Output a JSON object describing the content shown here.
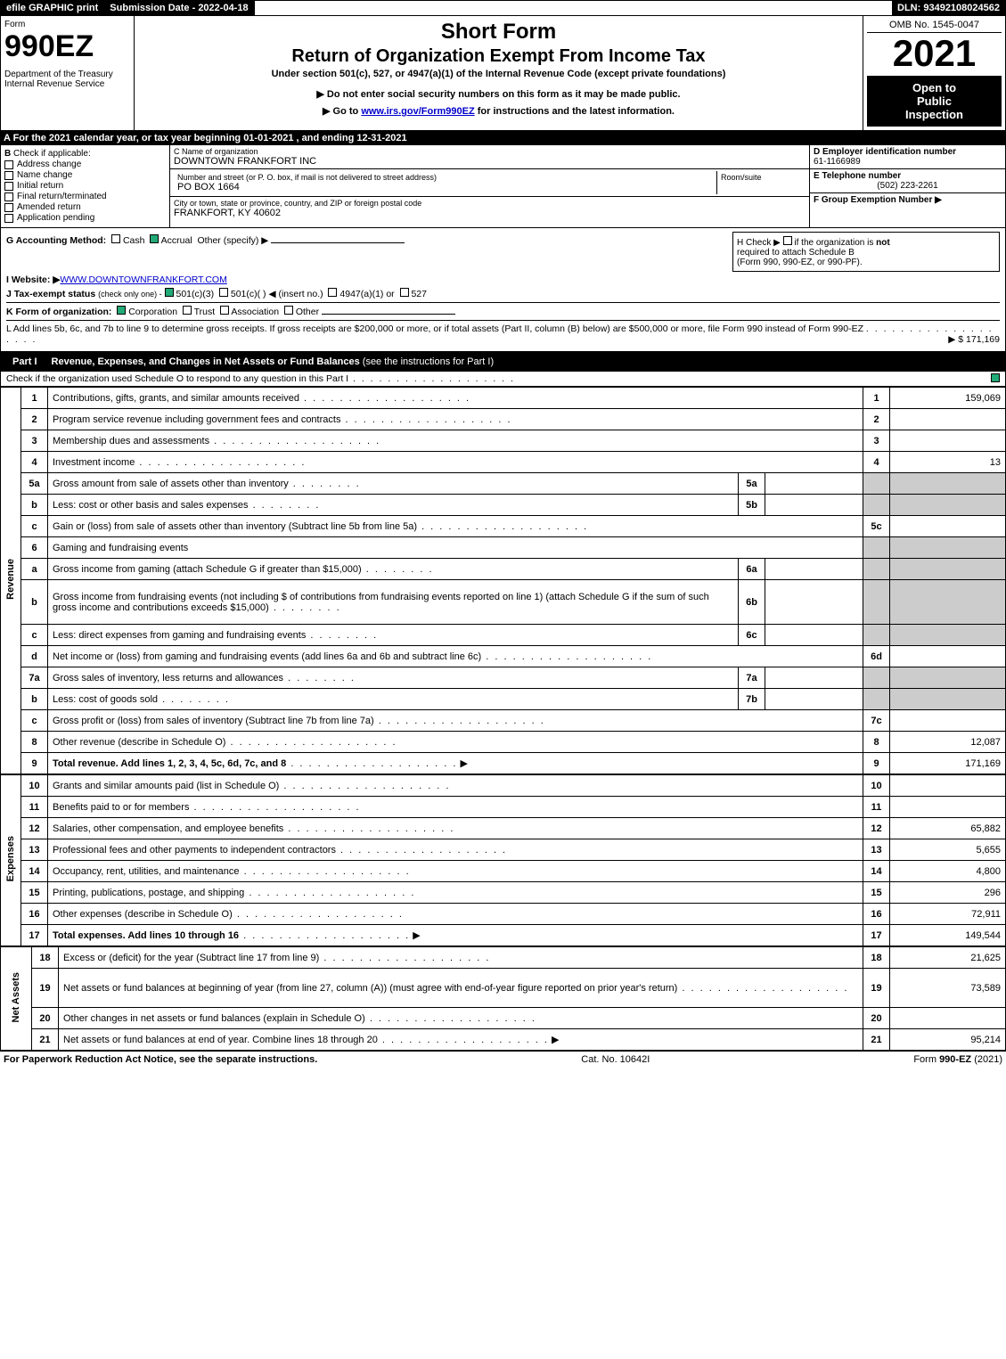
{
  "topbar": {
    "efile": "efile GRAPHIC print",
    "submission": "Submission Date - 2022-04-18",
    "dln": "DLN: 93492108024562"
  },
  "header": {
    "form_word": "Form",
    "form_no": "990EZ",
    "dept1": "Department of the Treasury",
    "dept2": "Internal Revenue Service",
    "short_form": "Short Form",
    "title": "Return of Organization Exempt From Income Tax",
    "subtitle": "Under section 501(c), 527, or 4947(a)(1) of the Internal Revenue Code (except private foundations)",
    "note1": "▶ Do not enter social security numbers on this form as it may be made public.",
    "note2_pre": "▶ Go to ",
    "note2_link": "www.irs.gov/Form990EZ",
    "note2_post": " for instructions and the latest information.",
    "omb": "OMB No. 1545-0047",
    "year": "2021",
    "open1": "Open to",
    "open2": "Public",
    "open3": "Inspection"
  },
  "secA": "A  For the 2021 calendar year, or tax year beginning 01-01-2021 , and ending 12-31-2021",
  "B": {
    "title": "B",
    "check": "Check if applicable:",
    "opts": [
      "Address change",
      "Name change",
      "Initial return",
      "Final return/terminated",
      "Amended return",
      "Application pending"
    ]
  },
  "C": {
    "name_label": "C Name of organization",
    "name": "DOWNTOWN FRANKFORT INC",
    "addr_label": "Number and street (or P. O. box, if mail is not delivered to street address)",
    "room_label": "Room/suite",
    "addr": "PO BOX 1664",
    "city_label": "City or town, state or province, country, and ZIP or foreign postal code",
    "city": "FRANKFORT, KY  40602"
  },
  "D": {
    "label": "D Employer identification number",
    "ein": "61-1166989",
    "phone_label": "E Telephone number",
    "phone": "(502) 223-2261",
    "group_label": "F Group Exemption Number  ▶"
  },
  "G": {
    "label": "G Accounting Method:",
    "cash": "Cash",
    "accrual": "Accrual",
    "other": "Other (specify) ▶"
  },
  "H": {
    "text1": "H  Check ▶",
    "text2": "if the organization is ",
    "not": "not",
    "text3": "required to attach Schedule B",
    "text4": "(Form 990, 990-EZ, or 990-PF)."
  },
  "I": {
    "label": "I Website: ▶",
    "value": "WWW.DOWNTOWNFRANKFORT.COM"
  },
  "J": {
    "label": "J Tax-exempt status",
    "note": "(check only one) -",
    "opt1": "501(c)(3)",
    "opt2": "501(c)(  ) ◀ (insert no.)",
    "opt3": "4947(a)(1) or",
    "opt4": "527"
  },
  "K": {
    "label": "K Form of organization:",
    "opts": [
      "Corporation",
      "Trust",
      "Association",
      "Other"
    ]
  },
  "L": {
    "text": "L Add lines 5b, 6c, and 7b to line 9 to determine gross receipts. If gross receipts are $200,000 or more, or if total assets (Part II, column (B) below) are $500,000 or more, file Form 990 instead of Form 990-EZ",
    "amount": "▶ $ 171,169"
  },
  "part1": {
    "label": "Part I",
    "title": "Revenue, Expenses, and Changes in Net Assets or Fund Balances",
    "note": "(see the instructions for Part I)",
    "check_line": "Check if the organization used Schedule O to respond to any question in this Part I"
  },
  "vlabels": {
    "revenue": "Revenue",
    "expenses": "Expenses",
    "netassets": "Net Assets"
  },
  "rows_revenue": [
    {
      "n": "1",
      "d": "Contributions, gifts, grants, and similar amounts received",
      "box": "1",
      "amt": "159,069"
    },
    {
      "n": "2",
      "d": "Program service revenue including government fees and contracts",
      "box": "2",
      "amt": ""
    },
    {
      "n": "3",
      "d": "Membership dues and assessments",
      "box": "3",
      "amt": ""
    },
    {
      "n": "4",
      "d": "Investment income",
      "box": "4",
      "amt": "13"
    },
    {
      "n": "5a",
      "d": "Gross amount from sale of assets other than inventory",
      "mini": "5a",
      "shade": true
    },
    {
      "n": "b",
      "d": "Less: cost or other basis and sales expenses",
      "mini": "5b",
      "shade": true
    },
    {
      "n": "c",
      "d": "Gain or (loss) from sale of assets other than inventory (Subtract line 5b from line 5a)",
      "box": "5c",
      "amt": ""
    },
    {
      "n": "6",
      "d": "Gaming and fundraising events",
      "header": true
    },
    {
      "n": "a",
      "d": "Gross income from gaming (attach Schedule G if greater than $15,000)",
      "mini": "6a",
      "shade": true
    },
    {
      "n": "b",
      "d": "Gross income from fundraising events (not including $                    of contributions from fundraising events reported on line 1) (attach Schedule G if the sum of such gross income and contributions exceeds $15,000)",
      "mini": "6b",
      "shade": true,
      "tall": true
    },
    {
      "n": "c",
      "d": "Less: direct expenses from gaming and fundraising events",
      "mini": "6c",
      "shade": true
    },
    {
      "n": "d",
      "d": "Net income or (loss) from gaming and fundraising events (add lines 6a and 6b and subtract line 6c)",
      "box": "6d",
      "amt": ""
    },
    {
      "n": "7a",
      "d": "Gross sales of inventory, less returns and allowances",
      "mini": "7a",
      "shade": true
    },
    {
      "n": "b",
      "d": "Less: cost of goods sold",
      "mini": "7b",
      "shade": true
    },
    {
      "n": "c",
      "d": "Gross profit or (loss) from sales of inventory (Subtract line 7b from line 7a)",
      "box": "7c",
      "amt": ""
    },
    {
      "n": "8",
      "d": "Other revenue (describe in Schedule O)",
      "box": "8",
      "amt": "12,087"
    },
    {
      "n": "9",
      "d": "Total revenue. Add lines 1, 2, 3, 4, 5c, 6d, 7c, and 8",
      "box": "9",
      "amt": "171,169",
      "bold": true,
      "arrow": true
    }
  ],
  "rows_expenses": [
    {
      "n": "10",
      "d": "Grants and similar amounts paid (list in Schedule O)",
      "box": "10",
      "amt": ""
    },
    {
      "n": "11",
      "d": "Benefits paid to or for members",
      "box": "11",
      "amt": ""
    },
    {
      "n": "12",
      "d": "Salaries, other compensation, and employee benefits",
      "box": "12",
      "amt": "65,882"
    },
    {
      "n": "13",
      "d": "Professional fees and other payments to independent contractors",
      "box": "13",
      "amt": "5,655"
    },
    {
      "n": "14",
      "d": "Occupancy, rent, utilities, and maintenance",
      "box": "14",
      "amt": "4,800"
    },
    {
      "n": "15",
      "d": "Printing, publications, postage, and shipping",
      "box": "15",
      "amt": "296"
    },
    {
      "n": "16",
      "d": "Other expenses (describe in Schedule O)",
      "box": "16",
      "amt": "72,911"
    },
    {
      "n": "17",
      "d": "Total expenses. Add lines 10 through 16",
      "box": "17",
      "amt": "149,544",
      "bold": true,
      "arrow": true
    }
  ],
  "rows_net": [
    {
      "n": "18",
      "d": "Excess or (deficit) for the year (Subtract line 17 from line 9)",
      "box": "18",
      "amt": "21,625"
    },
    {
      "n": "19",
      "d": "Net assets or fund balances at beginning of year (from line 27, column (A)) (must agree with end-of-year figure reported on prior year's return)",
      "box": "19",
      "amt": "73,589",
      "tall": true
    },
    {
      "n": "20",
      "d": "Other changes in net assets or fund balances (explain in Schedule O)",
      "box": "20",
      "amt": ""
    },
    {
      "n": "21",
      "d": "Net assets or fund balances at end of year. Combine lines 18 through 20",
      "box": "21",
      "amt": "95,214",
      "arrow": true
    }
  ],
  "footer": {
    "left": "For Paperwork Reduction Act Notice, see the separate instructions.",
    "mid": "Cat. No. 10642I",
    "right_pre": "Form ",
    "right_bold": "990-EZ",
    "right_post": " (2021)"
  }
}
